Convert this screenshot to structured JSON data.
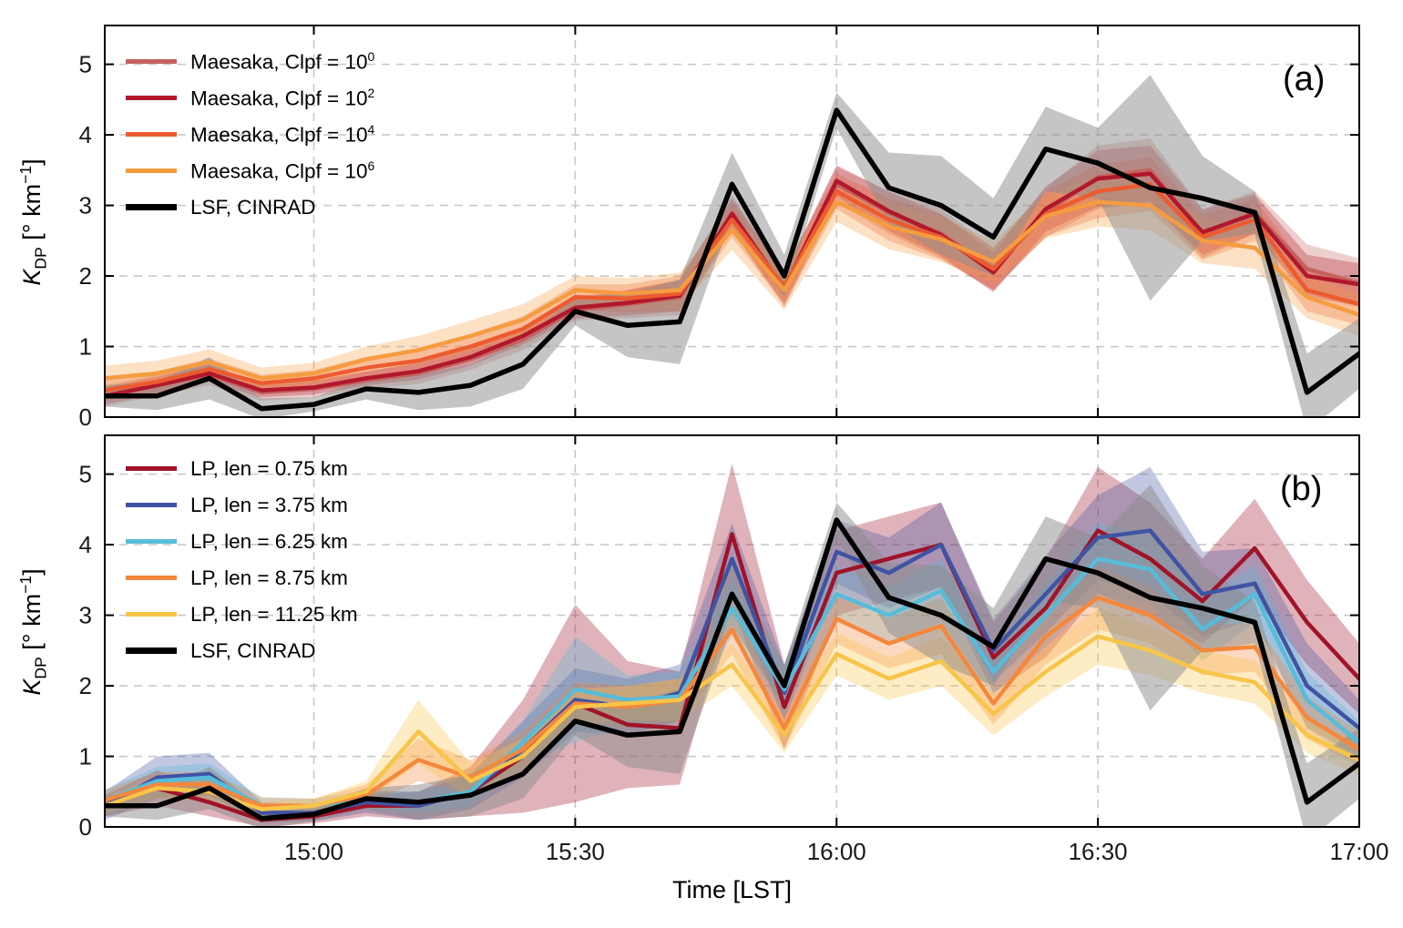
{
  "figure": {
    "xlabel": "Time [LST]",
    "ylabel": {
      "k": "K",
      "sub": "DP",
      "pre": " [° km",
      "sup": "−1",
      "post": "]"
    }
  },
  "chart_data": [
    {
      "panel_label": "(a)",
      "type": "line",
      "title": "",
      "x": [
        "14:36",
        "14:42",
        "14:48",
        "14:54",
        "15:00",
        "15:06",
        "15:12",
        "15:18",
        "15:24",
        "15:30",
        "15:36",
        "15:42",
        "15:48",
        "15:54",
        "16:00",
        "16:06",
        "16:12",
        "16:18",
        "16:24",
        "16:30",
        "16:36",
        "16:42",
        "16:48",
        "16:54",
        "17:00"
      ],
      "xtick_labels": [
        "15:00",
        "15:30",
        "16:00",
        "16:30",
        "17:00"
      ],
      "xtick_indices": [
        4,
        9,
        14,
        19,
        24
      ],
      "yticks": [
        0,
        1,
        2,
        3,
        4,
        5
      ],
      "ylim": [
        0,
        5.55
      ],
      "grid": true,
      "legend_position": "top-left",
      "show_x_labels": false,
      "series": [
        {
          "label": "Maesaka, Clpf = 10",
          "label_sup": "0",
          "color": "#C4625D",
          "band_opacity": 0.3,
          "line_width": 4.5,
          "values": [
            0.3,
            0.45,
            0.6,
            0.35,
            0.4,
            0.52,
            0.62,
            0.82,
            1.1,
            1.52,
            1.6,
            1.7,
            2.9,
            1.8,
            3.3,
            2.9,
            2.6,
            2.1,
            2.9,
            3.4,
            3.5,
            2.6,
            2.9,
            2.1,
            1.9
          ],
          "band": [
            0.15,
            0.15,
            0.15,
            0.12,
            0.12,
            0.12,
            0.15,
            0.15,
            0.15,
            0.15,
            0.2,
            0.25,
            0.25,
            0.25,
            0.25,
            0.3,
            0.35,
            0.3,
            0.35,
            0.45,
            0.45,
            0.35,
            0.3,
            0.35,
            0.35
          ]
        },
        {
          "label": "Maesaka, Clpf = 10",
          "label_sup": "2",
          "color": "#B1182C",
          "band_opacity": 0.3,
          "line_width": 4.5,
          "values": [
            0.3,
            0.45,
            0.62,
            0.38,
            0.42,
            0.55,
            0.65,
            0.85,
            1.15,
            1.55,
            1.62,
            1.72,
            2.88,
            1.82,
            3.35,
            2.92,
            2.58,
            2.05,
            2.95,
            3.38,
            3.45,
            2.62,
            2.88,
            2.0,
            1.88
          ],
          "band": [
            0.12,
            0.12,
            0.12,
            0.1,
            0.1,
            0.1,
            0.12,
            0.12,
            0.12,
            0.15,
            0.18,
            0.22,
            0.22,
            0.22,
            0.22,
            0.28,
            0.3,
            0.28,
            0.32,
            0.4,
            0.4,
            0.32,
            0.28,
            0.3,
            0.3
          ]
        },
        {
          "label": "Maesaka, Clpf = 10",
          "label_sup": "4",
          "color": "#EC5B30",
          "band_opacity": 0.3,
          "line_width": 4.5,
          "values": [
            0.38,
            0.5,
            0.68,
            0.48,
            0.55,
            0.7,
            0.8,
            1.0,
            1.25,
            1.7,
            1.68,
            1.75,
            2.8,
            1.85,
            3.2,
            2.8,
            2.55,
            2.1,
            2.88,
            3.2,
            3.3,
            2.55,
            2.8,
            1.8,
            1.6
          ],
          "band": [
            0.15,
            0.15,
            0.15,
            0.12,
            0.12,
            0.15,
            0.15,
            0.18,
            0.18,
            0.18,
            0.2,
            0.25,
            0.25,
            0.25,
            0.25,
            0.3,
            0.32,
            0.3,
            0.32,
            0.38,
            0.38,
            0.32,
            0.3,
            0.3,
            0.3
          ]
        },
        {
          "label": "Maesaka, Clpf = 10",
          "label_sup": "6",
          "color": "#F59C40",
          "band_opacity": 0.3,
          "line_width": 4.5,
          "values": [
            0.55,
            0.62,
            0.78,
            0.55,
            0.62,
            0.82,
            0.95,
            1.15,
            1.38,
            1.8,
            1.75,
            1.8,
            2.65,
            1.8,
            3.05,
            2.7,
            2.52,
            2.2,
            2.85,
            3.05,
            3.0,
            2.5,
            2.4,
            1.7,
            1.45
          ],
          "band": [
            0.18,
            0.18,
            0.18,
            0.15,
            0.15,
            0.18,
            0.2,
            0.22,
            0.22,
            0.2,
            0.22,
            0.25,
            0.28,
            0.28,
            0.28,
            0.32,
            0.32,
            0.3,
            0.32,
            0.35,
            0.35,
            0.32,
            0.3,
            0.3,
            0.3
          ]
        },
        {
          "label": "LSF, CINRAD",
          "label_sup": "",
          "color": "#000000",
          "band_color": "#8c8c8c",
          "band_opacity": 0.5,
          "line_width": 5.5,
          "is_reference": true,
          "values": [
            0.3,
            0.3,
            0.55,
            0.12,
            0.18,
            0.4,
            0.35,
            0.45,
            0.75,
            1.5,
            1.3,
            1.35,
            3.3,
            2.0,
            4.35,
            3.25,
            3.0,
            2.55,
            3.8,
            3.6,
            3.25,
            3.1,
            2.9,
            0.35,
            0.9
          ],
          "band": [
            0.15,
            0.2,
            0.3,
            0.15,
            0.1,
            0.15,
            0.25,
            0.3,
            0.35,
            0.2,
            0.45,
            0.6,
            0.45,
            0.3,
            0.25,
            0.5,
            0.7,
            0.55,
            0.6,
            0.5,
            1.6,
            0.6,
            0.3,
            0.55,
            0.5
          ]
        }
      ]
    },
    {
      "panel_label": "(b)",
      "type": "line",
      "title": "",
      "x": [
        "14:36",
        "14:42",
        "14:48",
        "14:54",
        "15:00",
        "15:06",
        "15:12",
        "15:18",
        "15:24",
        "15:30",
        "15:36",
        "15:42",
        "15:48",
        "15:54",
        "16:00",
        "16:06",
        "16:12",
        "16:18",
        "16:24",
        "16:30",
        "16:36",
        "16:42",
        "16:48",
        "16:54",
        "17:00"
      ],
      "xtick_labels": [
        "15:00",
        "15:30",
        "16:00",
        "16:30",
        "17:00"
      ],
      "xtick_indices": [
        4,
        9,
        14,
        19,
        24
      ],
      "yticks": [
        0,
        1,
        2,
        3,
        4,
        5
      ],
      "ylim": [
        0,
        5.55
      ],
      "grid": true,
      "legend_position": "top-left",
      "show_x_labels": true,
      "series": [
        {
          "label": "LP, len = 0.75 km",
          "label_sup": "",
          "color": "#A01328",
          "band_opacity": 0.32,
          "line_width": 4.5,
          "values": [
            0.3,
            0.55,
            0.35,
            0.1,
            0.15,
            0.3,
            0.3,
            0.5,
            1.0,
            1.75,
            1.45,
            1.4,
            4.15,
            1.7,
            3.6,
            3.8,
            4.0,
            2.4,
            3.1,
            4.2,
            3.8,
            3.2,
            3.95,
            2.9,
            2.1
          ],
          "band": [
            0.15,
            0.25,
            0.2,
            0.1,
            0.1,
            0.15,
            0.2,
            0.35,
            0.8,
            1.4,
            0.9,
            0.8,
            1.0,
            0.6,
            0.6,
            0.6,
            0.6,
            0.5,
            0.7,
            0.9,
            0.8,
            0.6,
            0.7,
            0.6,
            0.5
          ]
        },
        {
          "label": "LP, len = 3.75 km",
          "label_sup": "",
          "color": "#4053A3",
          "band_opacity": 0.32,
          "line_width": 4.5,
          "values": [
            0.3,
            0.7,
            0.75,
            0.2,
            0.2,
            0.35,
            0.3,
            0.5,
            1.1,
            1.8,
            1.7,
            1.9,
            3.8,
            1.9,
            3.9,
            3.6,
            4.0,
            2.5,
            3.3,
            4.1,
            4.2,
            3.3,
            3.45,
            2.0,
            1.4
          ],
          "band": [
            0.2,
            0.3,
            0.3,
            0.15,
            0.12,
            0.15,
            0.2,
            0.25,
            0.4,
            0.45,
            0.4,
            0.4,
            0.5,
            0.4,
            0.45,
            0.5,
            0.6,
            0.45,
            0.55,
            0.6,
            0.9,
            0.6,
            0.5,
            0.6,
            0.4
          ]
        },
        {
          "label": "LP, len = 6.25 km",
          "label_sup": "",
          "color": "#56BCD9",
          "band_opacity": 0.32,
          "line_width": 4.5,
          "values": [
            0.38,
            0.65,
            0.7,
            0.3,
            0.3,
            0.4,
            0.35,
            0.5,
            1.2,
            1.95,
            1.8,
            1.85,
            3.1,
            1.95,
            3.3,
            3.0,
            3.35,
            2.2,
            3.0,
            3.8,
            3.65,
            2.8,
            3.3,
            1.8,
            1.2
          ],
          "band": [
            0.15,
            0.2,
            0.2,
            0.12,
            0.1,
            0.12,
            0.15,
            0.2,
            0.3,
            0.75,
            0.35,
            0.35,
            0.4,
            0.35,
            0.4,
            0.4,
            0.45,
            0.35,
            0.45,
            0.5,
            0.5,
            0.45,
            0.4,
            0.4,
            0.3
          ]
        },
        {
          "label": "LP, len = 8.75 km",
          "label_sup": "",
          "color": "#F5873C",
          "band_opacity": 0.32,
          "line_width": 4.5,
          "values": [
            0.38,
            0.6,
            0.6,
            0.3,
            0.3,
            0.45,
            0.95,
            0.7,
            1.1,
            1.75,
            1.7,
            1.8,
            2.8,
            1.4,
            2.95,
            2.6,
            2.85,
            1.75,
            2.7,
            3.25,
            3.0,
            2.5,
            2.55,
            1.55,
            1.1
          ],
          "band": [
            0.15,
            0.18,
            0.18,
            0.12,
            0.1,
            0.15,
            0.3,
            0.25,
            0.25,
            0.3,
            0.3,
            0.3,
            0.35,
            0.3,
            0.35,
            0.35,
            0.4,
            0.3,
            0.4,
            0.45,
            0.4,
            0.35,
            0.35,
            0.3,
            0.25
          ]
        },
        {
          "label": "LP, len = 11.25 km",
          "label_sup": "",
          "color": "#F8C449",
          "band_opacity": 0.32,
          "line_width": 4.5,
          "values": [
            0.3,
            0.55,
            0.5,
            0.25,
            0.3,
            0.5,
            1.35,
            0.65,
            1.0,
            1.7,
            1.75,
            1.8,
            2.3,
            1.3,
            2.45,
            2.1,
            2.35,
            1.6,
            2.2,
            2.7,
            2.5,
            2.2,
            2.05,
            1.3,
            0.95
          ],
          "band": [
            0.12,
            0.15,
            0.15,
            0.1,
            0.1,
            0.15,
            0.45,
            0.25,
            0.25,
            0.25,
            0.25,
            0.3,
            0.3,
            0.25,
            0.3,
            0.3,
            0.35,
            0.3,
            0.35,
            0.4,
            0.35,
            0.3,
            0.3,
            0.25,
            0.22
          ]
        },
        {
          "label": "LSF, CINRAD",
          "label_sup": "",
          "color": "#000000",
          "band_color": "#8c8c8c",
          "band_opacity": 0.5,
          "line_width": 5.5,
          "is_reference": true,
          "values": [
            0.3,
            0.3,
            0.55,
            0.12,
            0.18,
            0.4,
            0.35,
            0.45,
            0.75,
            1.5,
            1.3,
            1.35,
            3.3,
            2.0,
            4.35,
            3.25,
            3.0,
            2.55,
            3.8,
            3.6,
            3.25,
            3.1,
            2.9,
            0.35,
            0.9
          ],
          "band": [
            0.15,
            0.2,
            0.3,
            0.15,
            0.1,
            0.15,
            0.25,
            0.3,
            0.35,
            0.2,
            0.45,
            0.6,
            0.45,
            0.3,
            0.25,
            0.5,
            0.7,
            0.55,
            0.6,
            0.5,
            1.6,
            0.6,
            0.3,
            0.55,
            0.5
          ]
        }
      ]
    }
  ],
  "style": {
    "grid_color": "#c9c9c9",
    "axis_color": "#000000",
    "tick_label_color": "#1a1a1a"
  }
}
